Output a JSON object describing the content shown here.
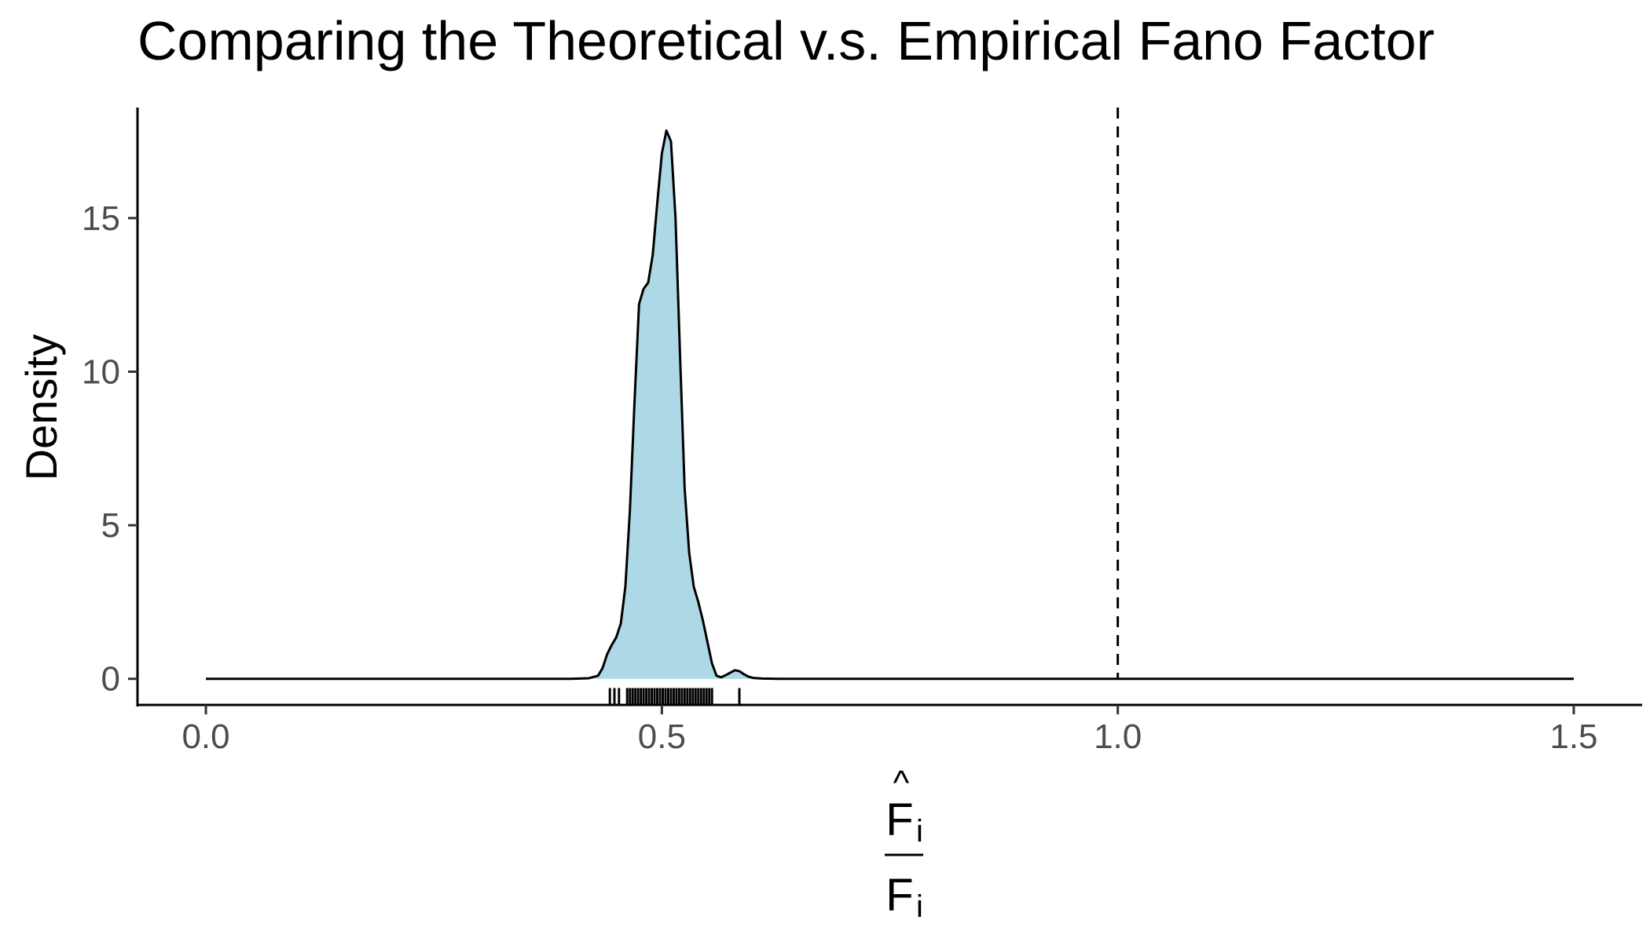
{
  "chart_data": {
    "type": "area",
    "title": "Comparing the Theoretical v.s. Empirical Fano Factor",
    "ylabel": "Density",
    "xlabel": {
      "numerator": "F",
      "numerator_accent": "^",
      "numerator_subscript": "i",
      "denominator": "F",
      "denominator_subscript": "i"
    },
    "xlim": [
      -0.075,
      1.575
    ],
    "ylim": [
      -0.85,
      18.6
    ],
    "x_ticks": [
      0.0,
      0.5,
      1.0,
      1.5
    ],
    "x_tick_labels": [
      "0.0",
      "0.5",
      "1.0",
      "1.5"
    ],
    "y_ticks": [
      0,
      5,
      10,
      15
    ],
    "y_tick_labels": [
      "0",
      "5",
      "10",
      "15"
    ],
    "grid": false,
    "legend": "none",
    "fill_color": "#add8e6",
    "line_color": "#000000",
    "reference_line": {
      "x": 1.0,
      "style": "dashed"
    },
    "density": {
      "x": [
        0.0,
        0.4,
        0.42,
        0.43,
        0.435,
        0.44,
        0.445,
        0.45,
        0.455,
        0.46,
        0.465,
        0.47,
        0.475,
        0.48,
        0.485,
        0.49,
        0.495,
        0.5,
        0.505,
        0.51,
        0.515,
        0.52,
        0.525,
        0.53,
        0.535,
        0.54,
        0.545,
        0.55,
        0.555,
        0.56,
        0.565,
        0.57,
        0.575,
        0.58,
        0.585,
        0.59,
        0.595,
        0.6,
        0.61,
        0.63,
        0.7,
        1.5
      ],
      "y": [
        0.0,
        0.0,
        0.02,
        0.1,
        0.35,
        0.8,
        1.1,
        1.35,
        1.8,
        3.0,
        5.5,
        9.0,
        12.2,
        12.7,
        12.9,
        13.8,
        15.5,
        17.1,
        17.85,
        17.5,
        15.0,
        10.5,
        6.2,
        4.1,
        3.0,
        2.5,
        1.9,
        1.2,
        0.5,
        0.1,
        0.05,
        0.12,
        0.2,
        0.28,
        0.25,
        0.15,
        0.07,
        0.03,
        0.01,
        0.0,
        0.0,
        0.0
      ]
    },
    "rug": [
      0.443,
      0.448,
      0.453,
      0.462,
      0.465,
      0.468,
      0.471,
      0.474,
      0.477,
      0.48,
      0.483,
      0.486,
      0.489,
      0.492,
      0.495,
      0.498,
      0.501,
      0.504,
      0.507,
      0.51,
      0.513,
      0.516,
      0.519,
      0.522,
      0.525,
      0.528,
      0.531,
      0.534,
      0.537,
      0.54,
      0.543,
      0.546,
      0.549,
      0.552,
      0.555,
      0.585
    ]
  }
}
